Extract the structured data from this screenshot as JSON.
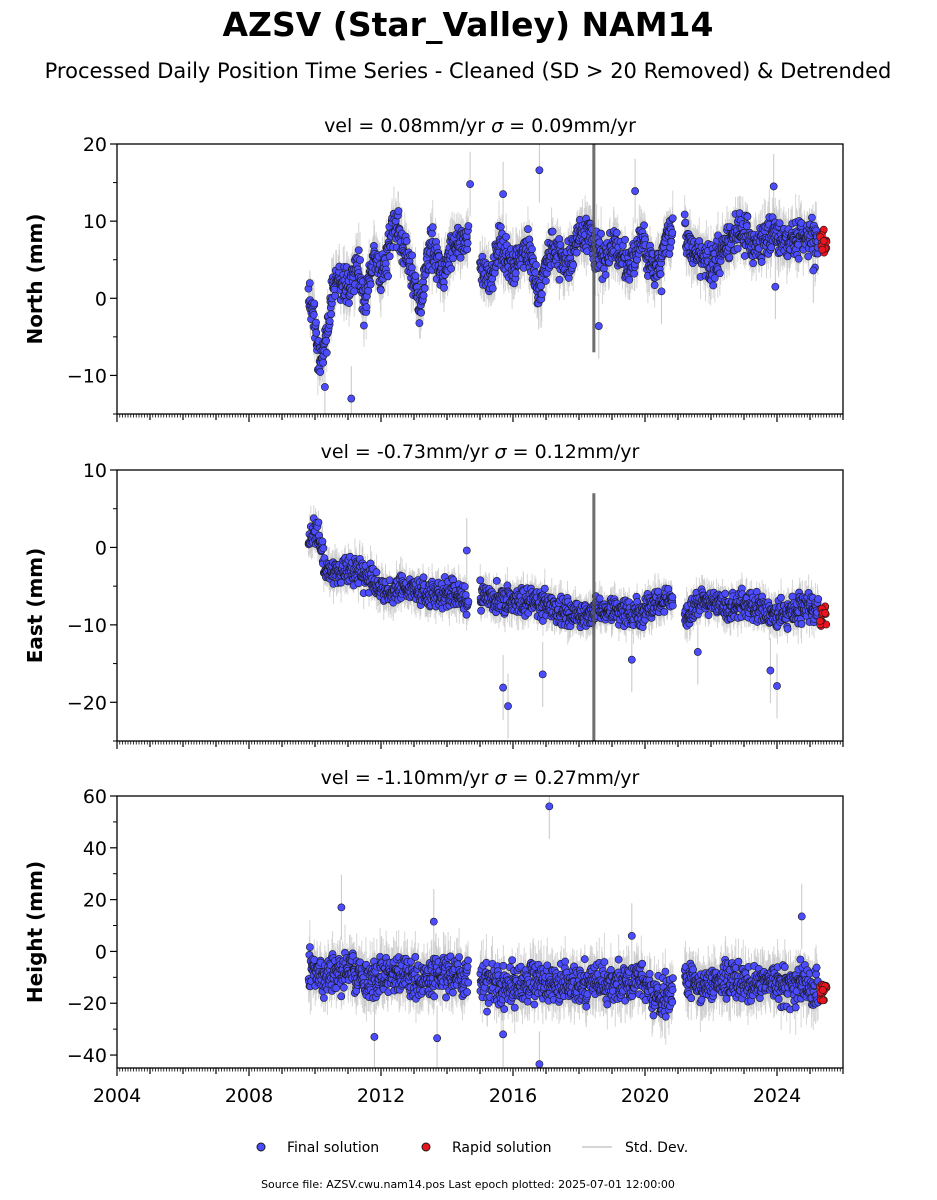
{
  "figure": {
    "title": "AZSV (Star_Valley) NAM14",
    "subtitle": "Processed Daily Position Time Series - Cleaned (SD > 20 Removed) & Detrended",
    "footer": "Source file: AZSV.cwu.nam14.pos  Last epoch plotted: 2025-07-01 12:00:00"
  },
  "legend": {
    "final_label": "Final solution",
    "rapid_label": "Rapid solution",
    "std_label": "Std. Dev."
  },
  "colors": {
    "final": "#4b4bff",
    "rapid": "#e8141e",
    "std": "#c8c8c8",
    "marker_edge": "#1a1a1a"
  },
  "chart_data": [
    {
      "type": "scatter",
      "name_key": "north",
      "ylabel": "North (mm)",
      "stats": {
        "vel": "0.08",
        "sigma": "0.09"
      },
      "stats_text": {
        "prefix": "vel = 0.08mm/yr   ",
        "suffix": " = 0.09mm/yr"
      },
      "xlim": [
        2004,
        2026
      ],
      "ylim": [
        -15,
        20
      ],
      "yticks": [
        -10,
        0,
        10,
        20
      ],
      "ytick_labels": [
        "−10",
        "0",
        "10",
        "20"
      ],
      "xticks": [
        2004,
        2008,
        2012,
        2016,
        2020,
        2024
      ],
      "xtick_labels": [],
      "segments": [
        {
          "x0": 2009.8,
          "x1": 2014.65,
          "pts": [
            [
              2009.8,
              0
            ],
            [
              2010.0,
              -3
            ],
            [
              2010.15,
              -9
            ],
            [
              2010.3,
              -6
            ],
            [
              2010.6,
              3
            ],
            [
              2011.0,
              2
            ],
            [
              2011.3,
              4
            ],
            [
              2011.5,
              -1
            ],
            [
              2011.8,
              6
            ],
            [
              2012.0,
              2
            ],
            [
              2012.4,
              10
            ],
            [
              2012.8,
              5
            ],
            [
              2013.2,
              -1
            ],
            [
              2013.5,
              7
            ],
            [
              2013.9,
              3
            ],
            [
              2014.2,
              7
            ],
            [
              2014.65,
              8
            ]
          ]
        },
        {
          "x0": 2015.0,
          "x1": 2018.3,
          "pts": [
            [
              2015.0,
              4
            ],
            [
              2015.3,
              2
            ],
            [
              2015.6,
              7
            ],
            [
              2016.0,
              4
            ],
            [
              2016.4,
              7
            ],
            [
              2016.8,
              1
            ],
            [
              2017.2,
              7
            ],
            [
              2017.6,
              4
            ],
            [
              2018.0,
              8
            ],
            [
              2018.3,
              9
            ]
          ]
        },
        {
          "x0": 2018.3,
          "x1": 2020.85,
          "pts": [
            [
              2018.3,
              8
            ],
            [
              2018.7,
              5
            ],
            [
              2019.1,
              7
            ],
            [
              2019.5,
              4
            ],
            [
              2019.9,
              8
            ],
            [
              2020.3,
              3
            ],
            [
              2020.85,
              9
            ]
          ]
        },
        {
          "x0": 2021.2,
          "x1": 2025.25,
          "pts": [
            [
              2021.2,
              8
            ],
            [
              2021.6,
              6
            ],
            [
              2022.0,
              4
            ],
            [
              2022.5,
              7
            ],
            [
              2022.8,
              9
            ],
            [
              2023.3,
              7
            ],
            [
              2023.8,
              9
            ],
            [
              2024.2,
              7
            ],
            [
              2024.6,
              8
            ],
            [
              2025.0,
              8
            ],
            [
              2025.25,
              7
            ]
          ]
        }
      ],
      "noise_sd": 1.7,
      "outliers": [
        [
          2010.3,
          -11.5
        ],
        [
          2011.1,
          -13
        ],
        [
          2014.7,
          14.8
        ],
        [
          2015.7,
          13.5
        ],
        [
          2016.8,
          16.6
        ],
        [
          2018.6,
          -3.6
        ],
        [
          2019.7,
          13.9
        ],
        [
          2020.5,
          0.9
        ],
        [
          2023.95,
          1.5
        ],
        [
          2023.9,
          14.5
        ],
        [
          2025.1,
          3.6
        ]
      ],
      "rapid": {
        "x0": 2025.3,
        "x1": 2025.5,
        "center": 7.5,
        "spread": 1.6
      },
      "spike": {
        "x": 2018.45,
        "low": -7,
        "high": 20
      }
    },
    {
      "type": "scatter",
      "name_key": "east",
      "ylabel": "East (mm)",
      "stats": {
        "vel": "-0.73",
        "sigma": "0.12"
      },
      "stats_text": {
        "prefix": "vel = -0.73mm/yr   ",
        "suffix": " = 0.12mm/yr"
      },
      "xlim": [
        2004,
        2026
      ],
      "ylim": [
        -25,
        10
      ],
      "yticks": [
        -20,
        -10,
        0,
        10
      ],
      "ytick_labels": [
        "−20",
        "−10",
        "0",
        "10"
      ],
      "xticks": [
        2004,
        2008,
        2012,
        2016,
        2020,
        2024
      ],
      "xtick_labels": [],
      "segments": [
        {
          "x0": 2009.8,
          "x1": 2014.65,
          "pts": [
            [
              2009.8,
              1
            ],
            [
              2010.1,
              2
            ],
            [
              2010.3,
              -3
            ],
            [
              2010.8,
              -3
            ],
            [
              2011.3,
              -3
            ],
            [
              2011.7,
              -4
            ],
            [
              2012.2,
              -6
            ],
            [
              2012.7,
              -5
            ],
            [
              2013.2,
              -6
            ],
            [
              2013.7,
              -6
            ],
            [
              2014.2,
              -6
            ],
            [
              2014.65,
              -7
            ]
          ]
        },
        {
          "x0": 2015.0,
          "x1": 2020.85,
          "pts": [
            [
              2015.0,
              -6
            ],
            [
              2015.6,
              -7
            ],
            [
              2016.2,
              -7
            ],
            [
              2016.8,
              -7
            ],
            [
              2017.4,
              -8
            ],
            [
              2018.0,
              -9
            ],
            [
              2018.6,
              -8
            ],
            [
              2019.2,
              -8
            ],
            [
              2019.8,
              -9
            ],
            [
              2020.3,
              -7
            ],
            [
              2020.85,
              -7
            ]
          ]
        },
        {
          "x0": 2021.2,
          "x1": 2025.25,
          "pts": [
            [
              2021.2,
              -9
            ],
            [
              2021.6,
              -7
            ],
            [
              2022.1,
              -7
            ],
            [
              2022.6,
              -8
            ],
            [
              2023.0,
              -7
            ],
            [
              2023.5,
              -8
            ],
            [
              2024.0,
              -9
            ],
            [
              2024.5,
              -8
            ],
            [
              2025.25,
              -8
            ]
          ]
        }
      ],
      "noise_sd": 1.2,
      "outliers": [
        [
          2014.6,
          -0.4
        ],
        [
          2015.7,
          -18.1
        ],
        [
          2015.85,
          -20.5
        ],
        [
          2016.9,
          -16.4
        ],
        [
          2019.6,
          -14.5
        ],
        [
          2021.6,
          -13.5
        ],
        [
          2023.8,
          -15.9
        ],
        [
          2024.0,
          -17.9
        ]
      ],
      "rapid": {
        "x0": 2025.3,
        "x1": 2025.5,
        "center": -8.8,
        "spread": 1.4
      },
      "spike": {
        "x": 2018.45,
        "low": -25,
        "high": 7
      }
    },
    {
      "type": "scatter",
      "name_key": "height",
      "ylabel": "Height (mm)",
      "stats": {
        "vel": "-1.10",
        "sigma": "0.27"
      },
      "stats_text": {
        "prefix": "vel = -1.10mm/yr   ",
        "suffix": " = 0.27mm/yr"
      },
      "xlim": [
        2004,
        2026
      ],
      "ylim": [
        -45,
        60
      ],
      "yticks": [
        -40,
        -20,
        0,
        20,
        40,
        60
      ],
      "ytick_labels": [
        "−40",
        "−20",
        "0",
        "20",
        "40",
        "60"
      ],
      "xticks": [
        2004,
        2008,
        2012,
        2016,
        2020,
        2024
      ],
      "xtick_labels": [
        "2004",
        "2008",
        "2012",
        "2016",
        "2020",
        "2024"
      ],
      "segments": [
        {
          "x0": 2009.8,
          "x1": 2014.65,
          "pts": [
            [
              2009.8,
              -8
            ],
            [
              2010.5,
              -10
            ],
            [
              2011.0,
              -7
            ],
            [
              2011.7,
              -12
            ],
            [
              2012.3,
              -8
            ],
            [
              2013.0,
              -12
            ],
            [
              2013.7,
              -9
            ],
            [
              2014.65,
              -9
            ]
          ]
        },
        {
          "x0": 2015.0,
          "x1": 2020.85,
          "pts": [
            [
              2015.0,
              -12
            ],
            [
              2015.8,
              -14
            ],
            [
              2016.6,
              -12
            ],
            [
              2017.4,
              -13
            ],
            [
              2018.2,
              -12
            ],
            [
              2019.0,
              -13
            ],
            [
              2019.8,
              -12
            ],
            [
              2020.5,
              -18
            ],
            [
              2020.85,
              -14
            ]
          ]
        },
        {
          "x0": 2021.2,
          "x1": 2025.25,
          "pts": [
            [
              2021.2,
              -10
            ],
            [
              2021.8,
              -13
            ],
            [
              2022.4,
              -10
            ],
            [
              2023.0,
              -14
            ],
            [
              2023.6,
              -10
            ],
            [
              2024.2,
              -14
            ],
            [
              2024.8,
              -12
            ],
            [
              2025.25,
              -15
            ]
          ]
        }
      ],
      "noise_sd": 5.2,
      "outliers": [
        [
          2010.8,
          17
        ],
        [
          2011.8,
          -33
        ],
        [
          2013.6,
          11.5
        ],
        [
          2013.7,
          -33.5
        ],
        [
          2015.7,
          -32
        ],
        [
          2016.8,
          -43.5
        ],
        [
          2017.1,
          56
        ],
        [
          2019.6,
          6
        ],
        [
          2024.75,
          13.5
        ]
      ],
      "rapid": {
        "x0": 2025.3,
        "x1": 2025.5,
        "center": -15.5,
        "spread": 3.5
      },
      "spike": null
    }
  ]
}
